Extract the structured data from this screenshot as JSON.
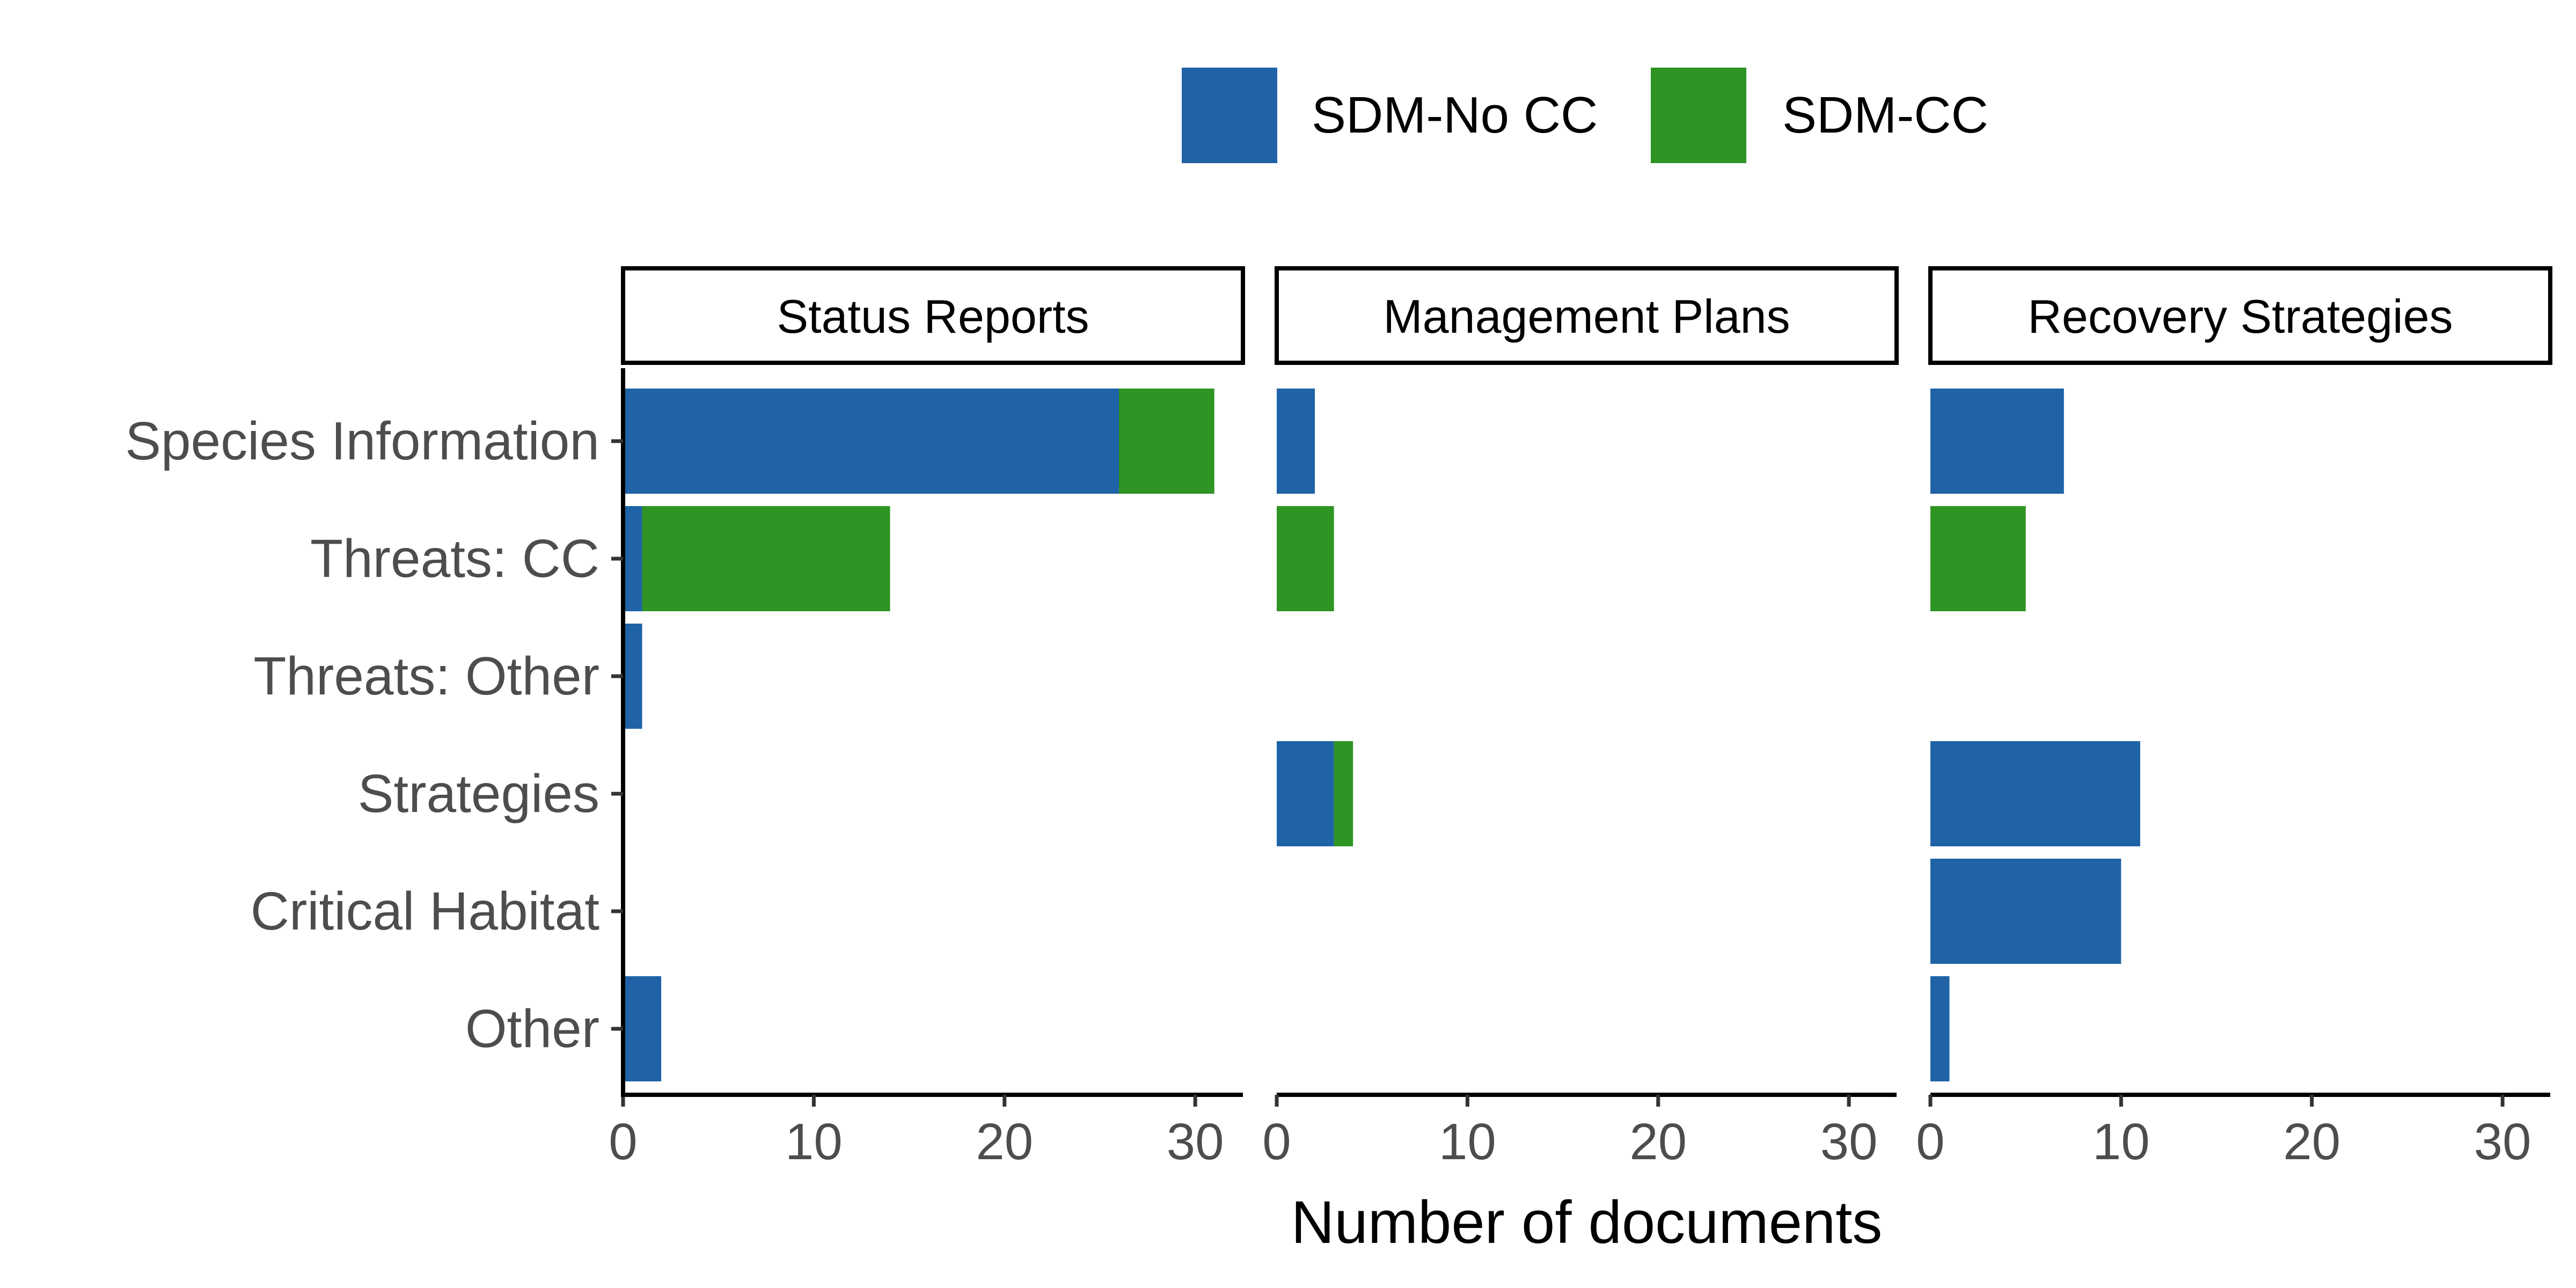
{
  "chart_data": {
    "type": "bar",
    "orientation": "horizontal",
    "stacked": true,
    "facets": [
      "Status Reports",
      "Management Plans",
      "Recovery Strategies"
    ],
    "categories": [
      "Species Information",
      "Threats: CC",
      "Threats: Other",
      "Strategies",
      "Critical Habitat",
      "Other"
    ],
    "series": [
      {
        "name": "SDM-No CC",
        "color": "#1f63a6",
        "values": [
          [
            26,
            1,
            1,
            0,
            0,
            2
          ],
          [
            2,
            0,
            0,
            3,
            0,
            0
          ],
          [
            7,
            0,
            0,
            11,
            10,
            1
          ]
        ]
      },
      {
        "name": "SDM-CC",
        "color": "#2e9424",
        "values": [
          [
            5,
            13,
            0,
            0,
            0,
            0
          ],
          [
            0,
            3,
            0,
            1,
            0,
            0
          ],
          [
            0,
            5,
            0,
            0,
            0,
            0
          ]
        ]
      }
    ],
    "xlabel": "Number of documents",
    "ylabel": "",
    "xlim": [
      0,
      32.5
    ],
    "xticks": [
      0,
      10,
      20,
      30
    ],
    "xtick_labels": [
      "0",
      "10",
      "20",
      "30"
    ],
    "grid": false,
    "legend_position": "top"
  }
}
